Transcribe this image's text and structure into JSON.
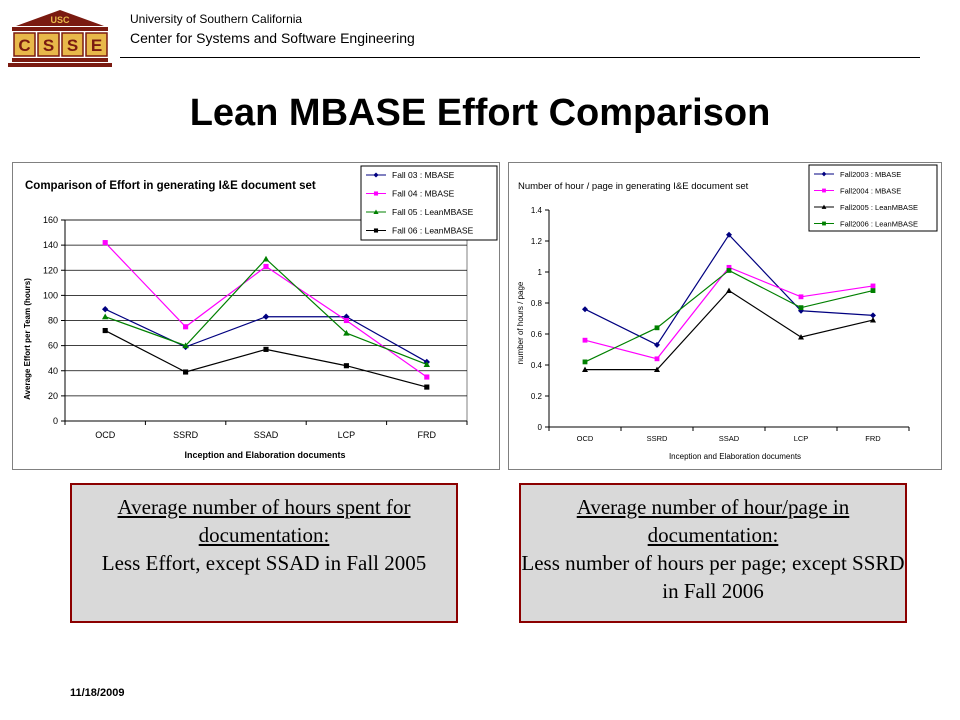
{
  "header": {
    "logo_top": "USC",
    "logo_letters": [
      "C",
      "S",
      "S",
      "E"
    ],
    "university": "University of Southern California",
    "center": "Center for Systems and Software Engineering"
  },
  "slide": {
    "title": "Lean MBASE Effort Comparison",
    "date": "11/18/2009"
  },
  "colors": {
    "accent_red": "#8b0000",
    "logo_gold": "#e8b84a",
    "logo_dark": "#7a1a10"
  },
  "notes": [
    {
      "lead": "Average number of hours spent for documentation:",
      "body": "Less Effort, except SSAD in Fall 2005"
    },
    {
      "lead": "Average number of hour/page in documentation:",
      "body": "Less number of hours per page; except SSRD in Fall 2006"
    }
  ],
  "chart_data": [
    {
      "type": "line",
      "title": "Comparison of Effort in generating I&E document set",
      "xlabel": "Inception and Elaboration documents",
      "ylabel": "Average Effort per Team (hours)",
      "categories": [
        "OCD",
        "SSRD",
        "SSAD",
        "LCP",
        "FRD"
      ],
      "ylim": [
        0,
        160
      ],
      "yticks": [
        "0",
        "20",
        "40",
        "60",
        "80",
        "100",
        "120",
        "140",
        "160"
      ],
      "grid": true,
      "legend_position": "top-right",
      "series": [
        {
          "name": "Fall 03 : MBASE",
          "color": "#000080",
          "marker": "diamond",
          "values": [
            89,
            59,
            83,
            83,
            47
          ]
        },
        {
          "name": "Fall 04 : MBASE",
          "color": "#ff00ff",
          "marker": "square",
          "values": [
            142,
            75,
            123,
            80,
            35
          ]
        },
        {
          "name": "Fall 05 : LeanMBASE",
          "color": "#008000",
          "marker": "triangle",
          "values": [
            83,
            60,
            129,
            70,
            45
          ]
        },
        {
          "name": "Fall 06 : LeanMBASE",
          "color": "#000000",
          "marker": "square",
          "values": [
            72,
            39,
            57,
            44,
            27
          ]
        }
      ]
    },
    {
      "type": "line",
      "title": "Number of hour / page in generating I&E document set",
      "xlabel": "Inception and Elaboration documents",
      "ylabel": "number of hours / page",
      "categories": [
        "OCD",
        "SSRD",
        "SSAD",
        "LCP",
        "FRD"
      ],
      "ylim": [
        0,
        1.4
      ],
      "yticks": [
        "0",
        "0.2",
        "0.4",
        "0.6",
        "0.8",
        "1",
        "1.2",
        "1.4"
      ],
      "grid": false,
      "legend_position": "top-right",
      "series": [
        {
          "name": "Fall2003 : MBASE",
          "color": "#000080",
          "marker": "diamond",
          "values": [
            0.76,
            0.53,
            1.24,
            0.75,
            0.72
          ]
        },
        {
          "name": "Fall2004 : MBASE",
          "color": "#ff00ff",
          "marker": "square",
          "values": [
            0.56,
            0.44,
            1.03,
            0.84,
            0.91
          ]
        },
        {
          "name": "Fall2005 : LeanMBASE",
          "color": "#000000",
          "marker": "triangle",
          "values": [
            0.37,
            0.37,
            0.88,
            0.58,
            0.69
          ]
        },
        {
          "name": "Fall2006 : LeanMBASE",
          "color": "#008000",
          "marker": "square",
          "values": [
            0.42,
            0.64,
            1.01,
            0.77,
            0.88
          ]
        }
      ]
    }
  ]
}
